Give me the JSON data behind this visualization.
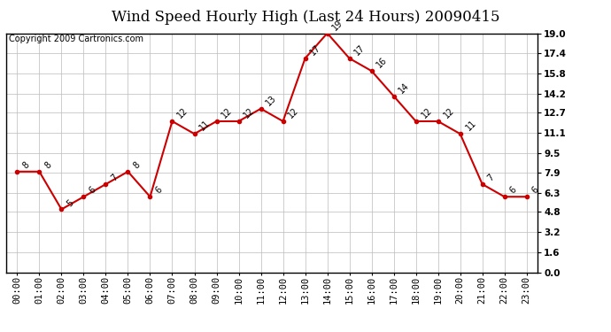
{
  "title": "Wind Speed Hourly High (Last 24 Hours) 20090415",
  "copyright": "Copyright 2009 Cartronics.com",
  "hours": [
    "00:00",
    "01:00",
    "02:00",
    "03:00",
    "04:00",
    "05:00",
    "06:00",
    "07:00",
    "08:00",
    "09:00",
    "10:00",
    "11:00",
    "12:00",
    "13:00",
    "14:00",
    "15:00",
    "16:00",
    "17:00",
    "18:00",
    "19:00",
    "20:00",
    "21:00",
    "22:00",
    "23:00"
  ],
  "values": [
    8,
    8,
    5,
    6,
    7,
    8,
    6,
    12,
    11,
    12,
    12,
    13,
    12,
    17,
    19,
    17,
    16,
    14,
    12,
    12,
    11,
    7,
    6,
    6
  ],
  "line_color": "#cc0000",
  "marker_color": "#cc0000",
  "bg_color": "#ffffff",
  "grid_color": "#bbbbbb",
  "ylim": [
    0.0,
    19.0
  ],
  "yticks": [
    0.0,
    1.6,
    3.2,
    4.8,
    6.3,
    7.9,
    9.5,
    11.1,
    12.7,
    14.2,
    15.8,
    17.4,
    19.0
  ],
  "title_fontsize": 12,
  "label_fontsize": 7.5,
  "annotation_fontsize": 7,
  "copyright_fontsize": 7
}
